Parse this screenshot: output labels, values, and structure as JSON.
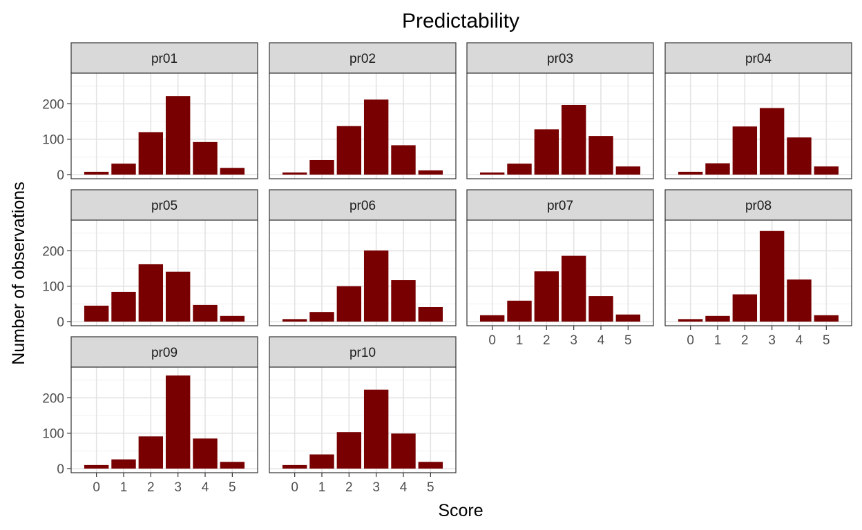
{
  "chart_data": {
    "type": "bar",
    "title": "Predictability",
    "xlabel": "Score",
    "ylabel": "Number of observations",
    "categories": [
      "0",
      "1",
      "2",
      "3",
      "4",
      "5"
    ],
    "ylim": [
      0,
      275
    ],
    "yticks": [
      0,
      100,
      200
    ],
    "grid": true,
    "bar_color": "#780000",
    "strip_color": "#d9d9d9",
    "panels": [
      {
        "name": "pr01",
        "values": [
          8,
          31,
          120,
          222,
          92,
          19
        ]
      },
      {
        "name": "pr02",
        "values": [
          6,
          41,
          137,
          212,
          83,
          12
        ]
      },
      {
        "name": "pr03",
        "values": [
          6,
          31,
          128,
          197,
          109,
          23
        ]
      },
      {
        "name": "pr04",
        "values": [
          8,
          32,
          136,
          188,
          105,
          23
        ]
      },
      {
        "name": "pr05",
        "values": [
          45,
          84,
          162,
          141,
          47,
          16
        ]
      },
      {
        "name": "pr06",
        "values": [
          7,
          27,
          100,
          201,
          117,
          41
        ]
      },
      {
        "name": "pr07",
        "values": [
          18,
          59,
          142,
          186,
          72,
          20
        ]
      },
      {
        "name": "pr08",
        "values": [
          7,
          16,
          77,
          256,
          119,
          18
        ]
      },
      {
        "name": "pr09",
        "values": [
          10,
          26,
          91,
          263,
          85,
          19
        ]
      },
      {
        "name": "pr10",
        "values": [
          10,
          40,
          103,
          223,
          99,
          19
        ]
      }
    ]
  }
}
